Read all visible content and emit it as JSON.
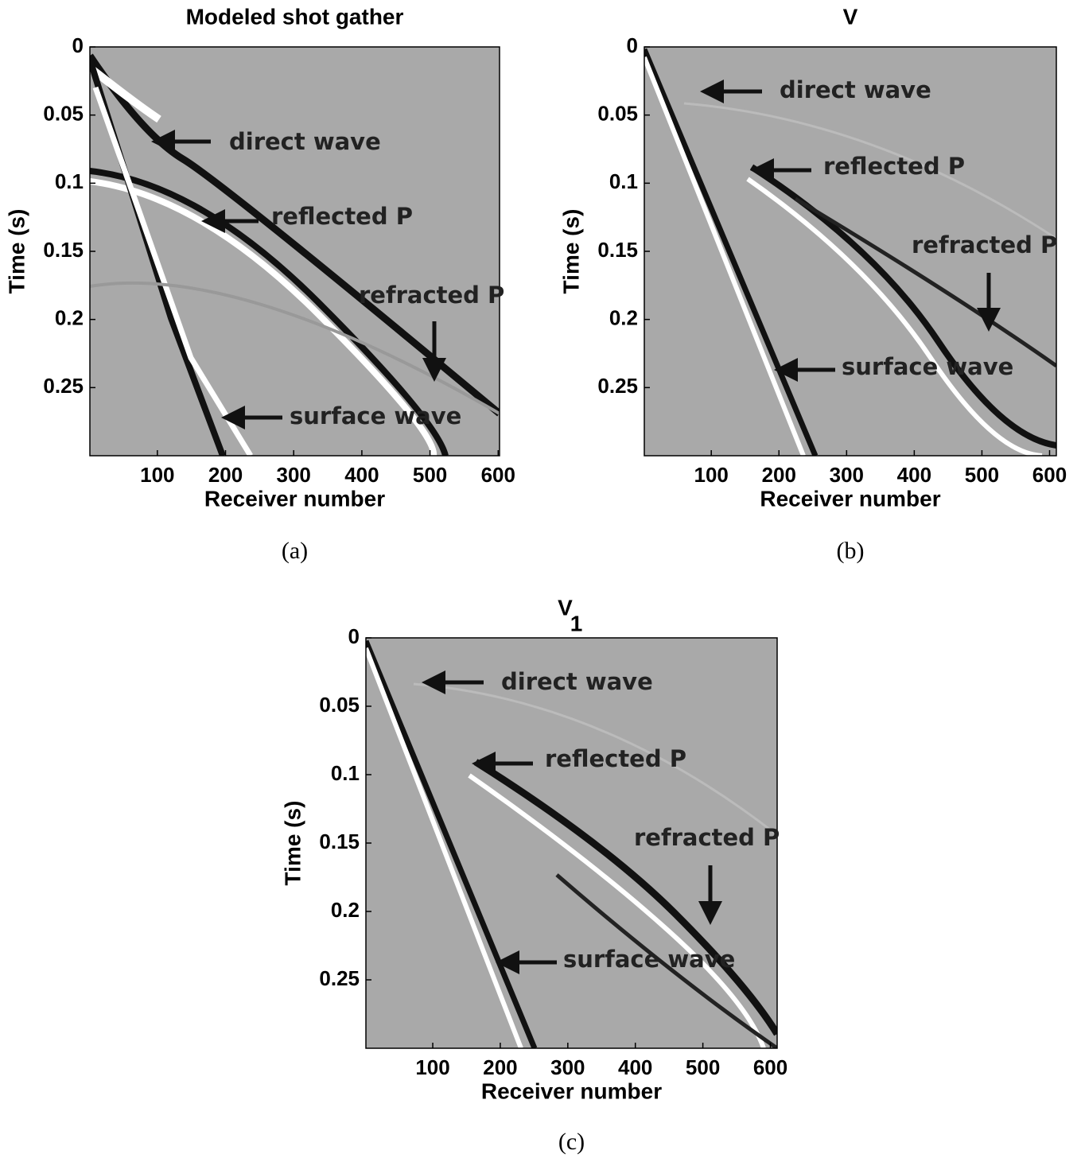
{
  "chart_data": [
    {
      "type": "seismic",
      "title": "Modeled shot gather",
      "xlabel": "Receiver number",
      "ylabel": "Time (s)",
      "caption": "(a)",
      "xlim": [
        1,
        602
      ],
      "ylim": [
        0,
        0.3
      ],
      "xticks": [
        100,
        200,
        300,
        400,
        500,
        600
      ],
      "yticks": [
        0,
        0.05,
        0.1,
        0.15,
        0.2,
        0.25
      ],
      "annotations": [
        "direct wave",
        "reflected P",
        "refracted P",
        "surface wave"
      ]
    },
    {
      "type": "seismic",
      "title": "V",
      "xlabel": "Receiver number",
      "ylabel": "Time (s)",
      "caption": "(b)",
      "xlim": [
        1,
        610
      ],
      "ylim": [
        0,
        0.3
      ],
      "xticks": [
        100,
        200,
        300,
        400,
        500,
        600
      ],
      "yticks": [
        0,
        0.05,
        0.1,
        0.15,
        0.2,
        0.25
      ],
      "annotations": [
        "direct wave",
        "reflected P",
        "refracted P",
        "surface wave"
      ]
    },
    {
      "type": "seismic",
      "title": "V",
      "title_sub": "1",
      "xlabel": "Receiver number",
      "ylabel": "Time (s)",
      "caption": "(c)",
      "xlim": [
        1,
        610
      ],
      "ylim": [
        0,
        0.3
      ],
      "xticks": [
        100,
        200,
        300,
        400,
        500,
        600
      ],
      "yticks": [
        0,
        0.05,
        0.1,
        0.15,
        0.2,
        0.25
      ],
      "annotations": [
        "direct wave",
        "reflected P",
        "refracted P",
        "surface wave"
      ]
    }
  ]
}
